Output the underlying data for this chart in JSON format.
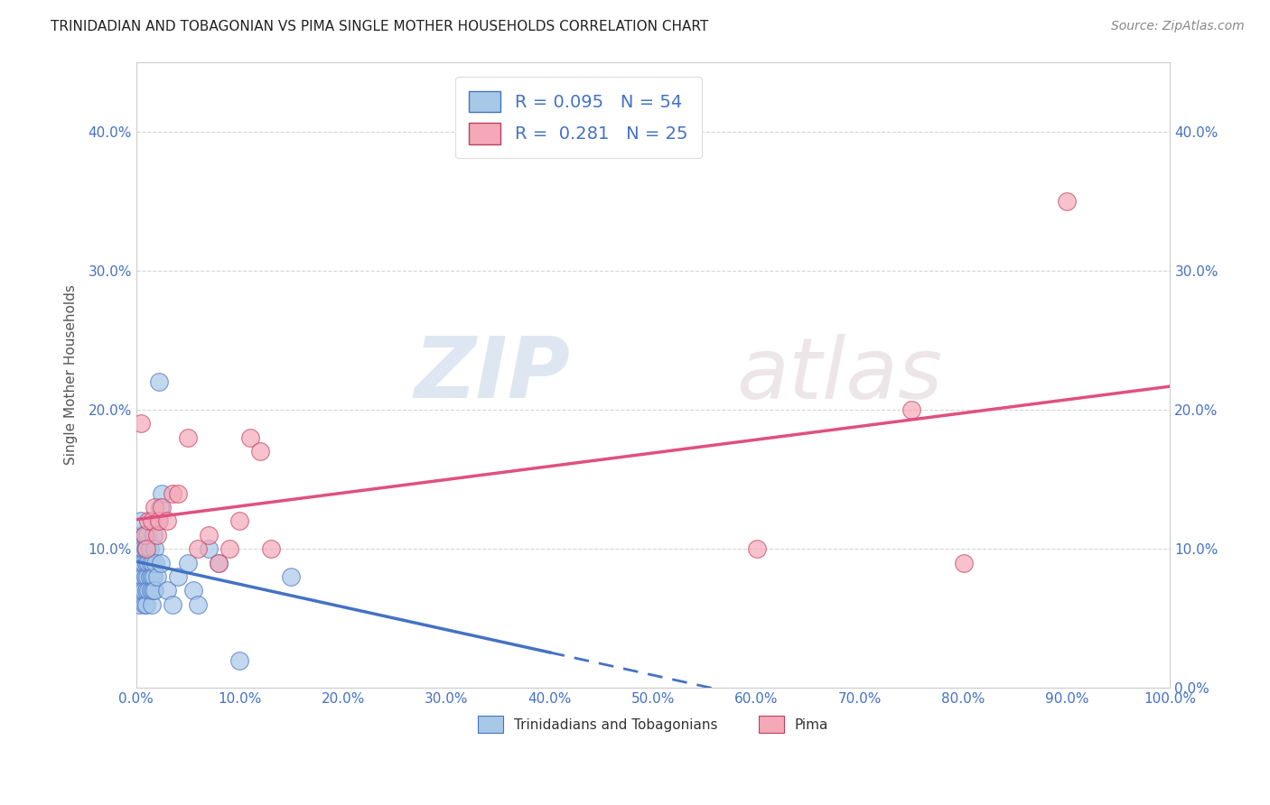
{
  "title": "TRINIDADIAN AND TOBAGONIAN VS PIMA SINGLE MOTHER HOUSEHOLDS CORRELATION CHART",
  "source": "Source: ZipAtlas.com",
  "ylabel": "Single Mother Households",
  "legend_label1": "Trinidadians and Tobagonians",
  "legend_label2": "Pima",
  "R1": 0.095,
  "N1": 54,
  "R2": 0.281,
  "N2": 25,
  "color1": "#a8c8e8",
  "color2": "#f4a8b8",
  "line1_color": "#4472c4",
  "line2_color": "#e05080",
  "watermark_zip": "ZIP",
  "watermark_atlas": "atlas",
  "xlim": [
    0.0,
    1.0
  ],
  "ylim": [
    0.0,
    0.45
  ],
  "xticks": [
    0.0,
    0.1,
    0.2,
    0.3,
    0.4,
    0.5,
    0.6,
    0.7,
    0.8,
    0.9,
    1.0
  ],
  "yticks": [
    0.0,
    0.1,
    0.2,
    0.3,
    0.4
  ],
  "trin_x": [
    0.001,
    0.002,
    0.002,
    0.003,
    0.003,
    0.004,
    0.004,
    0.005,
    0.005,
    0.005,
    0.006,
    0.006,
    0.007,
    0.007,
    0.008,
    0.008,
    0.009,
    0.009,
    0.01,
    0.01,
    0.01,
    0.011,
    0.011,
    0.012,
    0.012,
    0.013,
    0.013,
    0.014,
    0.014,
    0.015,
    0.015,
    0.016,
    0.016,
    0.017,
    0.017,
    0.018,
    0.018,
    0.019,
    0.02,
    0.021,
    0.022,
    0.023,
    0.024,
    0.025,
    0.03,
    0.035,
    0.04,
    0.05,
    0.055,
    0.06,
    0.07,
    0.08,
    0.1,
    0.15
  ],
  "trin_y": [
    0.08,
    0.07,
    0.09,
    0.06,
    0.1,
    0.08,
    0.11,
    0.07,
    0.09,
    0.12,
    0.08,
    0.1,
    0.07,
    0.09,
    0.06,
    0.11,
    0.08,
    0.1,
    0.07,
    0.09,
    0.06,
    0.08,
    0.11,
    0.07,
    0.09,
    0.08,
    0.1,
    0.07,
    0.09,
    0.06,
    0.08,
    0.07,
    0.09,
    0.11,
    0.08,
    0.1,
    0.07,
    0.09,
    0.08,
    0.12,
    0.22,
    0.13,
    0.09,
    0.14,
    0.07,
    0.06,
    0.08,
    0.09,
    0.07,
    0.06,
    0.1,
    0.09,
    0.02,
    0.08
  ],
  "pima_x": [
    0.005,
    0.008,
    0.01,
    0.012,
    0.015,
    0.018,
    0.02,
    0.022,
    0.025,
    0.03,
    0.035,
    0.04,
    0.05,
    0.06,
    0.07,
    0.08,
    0.09,
    0.1,
    0.11,
    0.12,
    0.13,
    0.6,
    0.75,
    0.8,
    0.9
  ],
  "pima_y": [
    0.19,
    0.11,
    0.1,
    0.12,
    0.12,
    0.13,
    0.11,
    0.12,
    0.13,
    0.12,
    0.14,
    0.14,
    0.18,
    0.1,
    0.11,
    0.09,
    0.1,
    0.12,
    0.18,
    0.17,
    0.1,
    0.1,
    0.2,
    0.09,
    0.35
  ]
}
